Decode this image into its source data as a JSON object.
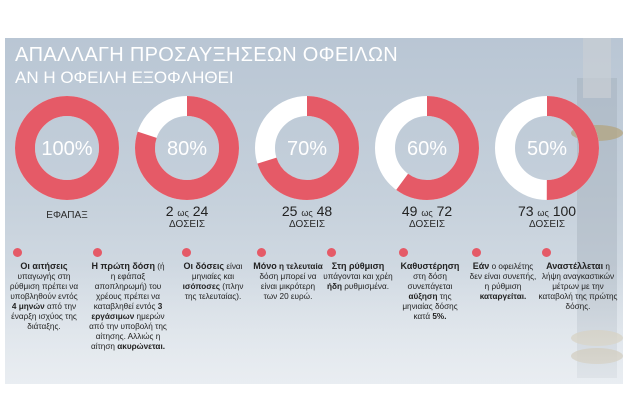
{
  "header": {
    "title": "ΑΠΑΛΛΑΓΗ ΠΡΟΣΑΥΞΗΣΕΩΝ ΟΦΕΙΛΩΝ",
    "subtitle": "ΑΝ Η ΟΦΕΙΛΗ ΕΞΟΦΛΗΘΕΙ"
  },
  "colors": {
    "accent": "#e55a67",
    "remainder": "#ffffff"
  },
  "chart_data": {
    "type": "pie",
    "title": "ΑΠΑΛΛΑΓΗ ΠΡΟΣΑΥΞΗΣΕΩΝ ΟΦΕΙΛΩΝ",
    "subtitle": "ΑΝ Η ΟΦΕΙΛΗ ΕΞΟΦΛΗΘΕΙ",
    "categories": [
      "ΕΦΑΠΑΞ",
      "2 ως 24 ΔΟΣΕΙΣ",
      "25 ως 48 ΔΟΣΕΙΣ",
      "49 ως 72 ΔΟΣΕΙΣ",
      "73 ως 100 ΔΟΣΕΙΣ"
    ],
    "values": [
      100,
      80,
      70,
      60,
      50
    ],
    "donuts": [
      {
        "value": 100,
        "label": "100%",
        "cap_main": "ΕΦΑΠΑΞ",
        "cap_pre": "",
        "cap_mid": "",
        "cap_post": "",
        "cap_sub": ""
      },
      {
        "value": 80,
        "label": "80%",
        "cap_main": "",
        "cap_pre": "2",
        "cap_mid": "ως",
        "cap_post": "24",
        "cap_sub": "ΔΟΣΕΙΣ"
      },
      {
        "value": 70,
        "label": "70%",
        "cap_main": "",
        "cap_pre": "25",
        "cap_mid": "ως",
        "cap_post": "48",
        "cap_sub": "ΔΟΣΕΙΣ"
      },
      {
        "value": 60,
        "label": "60%",
        "cap_main": "",
        "cap_pre": "49",
        "cap_mid": "ως",
        "cap_post": "72",
        "cap_sub": "ΔΟΣΕΙΣ"
      },
      {
        "value": 50,
        "label": "50%",
        "cap_main": "",
        "cap_pre": "73",
        "cap_mid": "ως",
        "cap_post": "100",
        "cap_sub": "ΔΟΣΕΙΣ"
      }
    ]
  },
  "notes": [
    {
      "lead": "Οι αιτήσεις",
      "t1": "υπαγωγής στη ρύθμιση πρέπει να υποβληθούν εντός",
      "b1": "4 μηνών",
      "t2": "από την έναρξη ισχύος της διάταξης.",
      "b2": "",
      "t3": ""
    },
    {
      "lead": "Η πρώτη δόση",
      "t1": "(ή η εφάπαξ αποπληρωμή) του χρέους πρέπει να καταβληθεί εντός",
      "b1": "3 εργάσιμων",
      "t2": "ημερών από την υποβολή της αίτησης. Αλλιώς η αίτηση",
      "b2": "ακυρώνεται.",
      "t3": ""
    },
    {
      "lead": "Οι δόσεις",
      "t1": "είναι μηνιαίες και",
      "b1": "ισόποσες",
      "t2": "(πλην της τελευταίας).",
      "b2": "",
      "t3": ""
    },
    {
      "lead": "Μόνο",
      "t1": "",
      "b1": "η τελευταία",
      "t2": "δόση μπορεί να είναι μικρότερη των 20 ευρώ.",
      "b2": "",
      "t3": ""
    },
    {
      "lead": "Στη ρύθμιση",
      "t1": "υπάγονται και χρέη",
      "b1": "ήδη",
      "t2": "ρυθμισμένα.",
      "b2": "",
      "t3": ""
    },
    {
      "lead": "Καθυστέρηση",
      "t1": "στη δόση συνεπάγεται",
      "b1": "αύξηση",
      "t2": "της μηνιαίας δόσης κατά",
      "b2": "5%.",
      "t3": ""
    },
    {
      "lead": "Εάν",
      "t1": "ο οφειλέτης δεν είναι συνεπής, η ρύθμιση",
      "b1": "καταργείται.",
      "t2": "",
      "b2": "",
      "t3": ""
    },
    {
      "lead": "Αναστέλλεται",
      "t1": "η λήψη αναγκαστικών μέτρων με την καταβολή της πρώτης δόσης.",
      "b1": "",
      "t2": "",
      "b2": "",
      "t3": ""
    }
  ]
}
